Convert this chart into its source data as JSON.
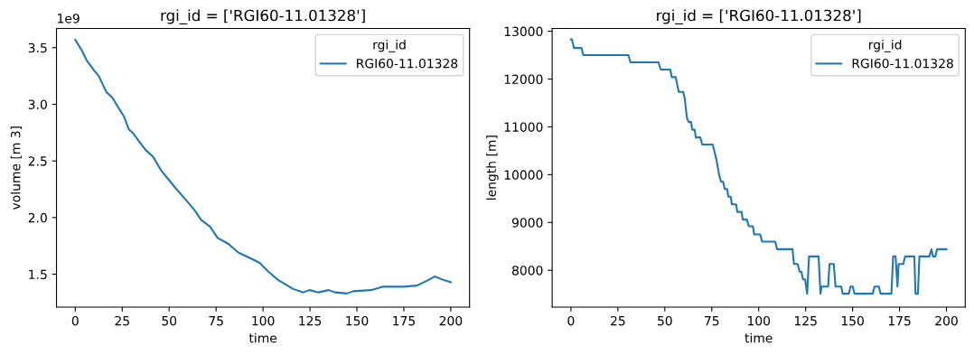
{
  "chart_data": [
    {
      "type": "line",
      "title": "rgi_id = ['RGI60-11.01328']",
      "xlabel": "time",
      "ylabel": "volume [m 3]",
      "legend_title": "rgi_id",
      "legend": "top right",
      "grid": false,
      "annotations": [
        "1e9"
      ],
      "xlim": [
        -10,
        210
      ],
      "xticks": [
        0,
        25,
        50,
        75,
        100,
        125,
        150,
        175,
        200
      ],
      "ylim": [
        1.21,
        3.67
      ],
      "yticks": [
        1.5,
        {
          "value": 2,
          "label": "2.0"
        },
        2.5,
        {
          "value": 3,
          "label": "3.0"
        },
        3.5
      ],
      "series": [
        {
          "name": "RGI60-11.01328",
          "color": "#1f77b4",
          "x": [
            0,
            3.7,
            6,
            10,
            12.5,
            16.5,
            19.7,
            23,
            26,
            28.5,
            31,
            37.3,
            41.3,
            46,
            50,
            53.4,
            59.8,
            63.8,
            67,
            71.8,
            75.8,
            81.4,
            87,
            93.4,
            98.2,
            103,
            108,
            116,
            121.5,
            124.7,
            129.5,
            135,
            138.3,
            144.7,
            148,
            157.5,
            164,
            170,
            175,
            182,
            187,
            191.5,
            196,
            200
          ],
          "values": [
            3.57,
            3.47,
            3.39,
            3.3,
            3.25,
            3.11,
            3.06,
            2.97,
            2.89,
            2.78,
            2.74,
            2.6,
            2.54,
            2.41,
            2.33,
            2.26,
            2.14,
            2.06,
            1.98,
            1.92,
            1.82,
            1.77,
            1.69,
            1.64,
            1.6,
            1.52,
            1.45,
            1.37,
            1.34,
            1.36,
            1.34,
            1.36,
            1.34,
            1.33,
            1.35,
            1.36,
            1.39,
            1.39,
            1.39,
            1.4,
            1.44,
            1.48,
            1.45,
            1.43
          ]
        }
      ]
    },
    {
      "type": "line",
      "title": "rgi_id = ['RGI60-11.01328']",
      "xlabel": "time",
      "ylabel": "length [m]",
      "legend_title": "rgi_id",
      "legend": "top right",
      "grid": false,
      "xlim": [
        -10,
        210
      ],
      "xticks": [
        0,
        25,
        50,
        75,
        100,
        125,
        150,
        175,
        200
      ],
      "ylim": [
        7230,
        13060
      ],
      "yticks": [
        8000,
        9000,
        10000,
        11000,
        12000,
        13000
      ],
      "series": [
        {
          "name": "RGI60-11.01328",
          "color": "#1f77b4",
          "x": [
            0,
            0.5,
            1.6,
            5.6,
            6.6,
            30.6,
            31.7,
            46.6,
            47.8,
            52.9,
            53.7,
            55.8,
            57.4,
            59.8,
            60.6,
            61.7,
            62.7,
            64,
            64.6,
            65.9,
            66.5,
            68.9,
            69.9,
            75.5,
            77.4,
            79,
            80,
            81.1,
            81.9,
            83.2,
            83.8,
            85.1,
            85.7,
            88,
            88.6,
            90.9,
            91.5,
            93.7,
            94.7,
            96.9,
            97.6,
            100.8,
            101.8,
            108.8,
            109.8,
            118,
            118.8,
            120.7,
            121.8,
            122.7,
            123.6,
            124.7,
            125.8,
            126.8,
            131.9,
            132.9,
            133.5,
            137,
            137.7,
            140,
            140.9,
            144,
            144.7,
            148,
            148.9,
            150.1,
            151,
            160.7,
            161.7,
            164,
            164.9,
            170.7,
            171.6,
            172.9,
            173.9,
            174.5,
            177,
            178,
            182.9,
            183.5,
            184.8,
            185.6,
            190.9,
            192,
            192.8,
            194.1,
            195,
            200
          ],
          "values": [
            12830,
            12830,
            12650,
            12650,
            12500,
            12500,
            12350,
            12350,
            12200,
            12200,
            12040,
            12040,
            11730,
            11730,
            11600,
            11200,
            11100,
            11100,
            10940,
            10940,
            10780,
            10780,
            10630,
            10630,
            10330,
            9980,
            9850,
            9850,
            9700,
            9700,
            9540,
            9540,
            9380,
            9380,
            9220,
            9220,
            9060,
            9060,
            8920,
            8920,
            8750,
            8750,
            8600,
            8600,
            8440,
            8440,
            8130,
            8130,
            7970,
            7970,
            7810,
            7810,
            7510,
            8290,
            8290,
            7510,
            7660,
            7660,
            8130,
            8130,
            7660,
            7660,
            7510,
            7510,
            7660,
            7660,
            7510,
            7510,
            7660,
            7660,
            7510,
            7510,
            8290,
            8290,
            7660,
            8130,
            8130,
            8290,
            8290,
            7510,
            7510,
            8290,
            8290,
            8440,
            8290,
            8290,
            8440,
            8440
          ]
        }
      ]
    }
  ]
}
